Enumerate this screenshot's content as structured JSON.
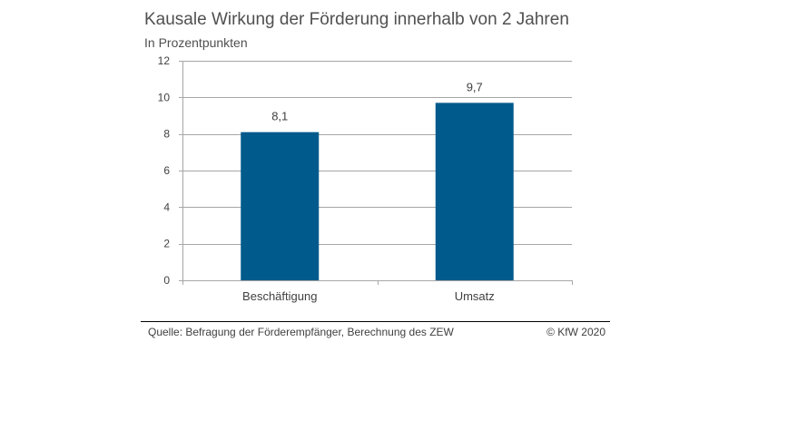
{
  "chart_data": {
    "type": "bar",
    "title": "Kausale Wirkung der Förderung innerhalb von 2 Jahren",
    "subtitle": "In Prozentpunkten",
    "categories": [
      "Beschäftigung",
      "Umsatz"
    ],
    "values": [
      8.1,
      9.7
    ],
    "value_labels": [
      "8,1",
      "9,7"
    ],
    "ylim": [
      0,
      12
    ],
    "yticks": [
      0,
      2,
      4,
      6,
      8,
      10,
      12
    ],
    "grid": true,
    "legend": "none",
    "bar_color": "#005A8C",
    "grid_color": "#A6A6A6"
  },
  "footer": {
    "source": "Quelle: Befragung der Förderempfänger, Berechnung des ZEW",
    "copyright": "© KfW 2020"
  }
}
